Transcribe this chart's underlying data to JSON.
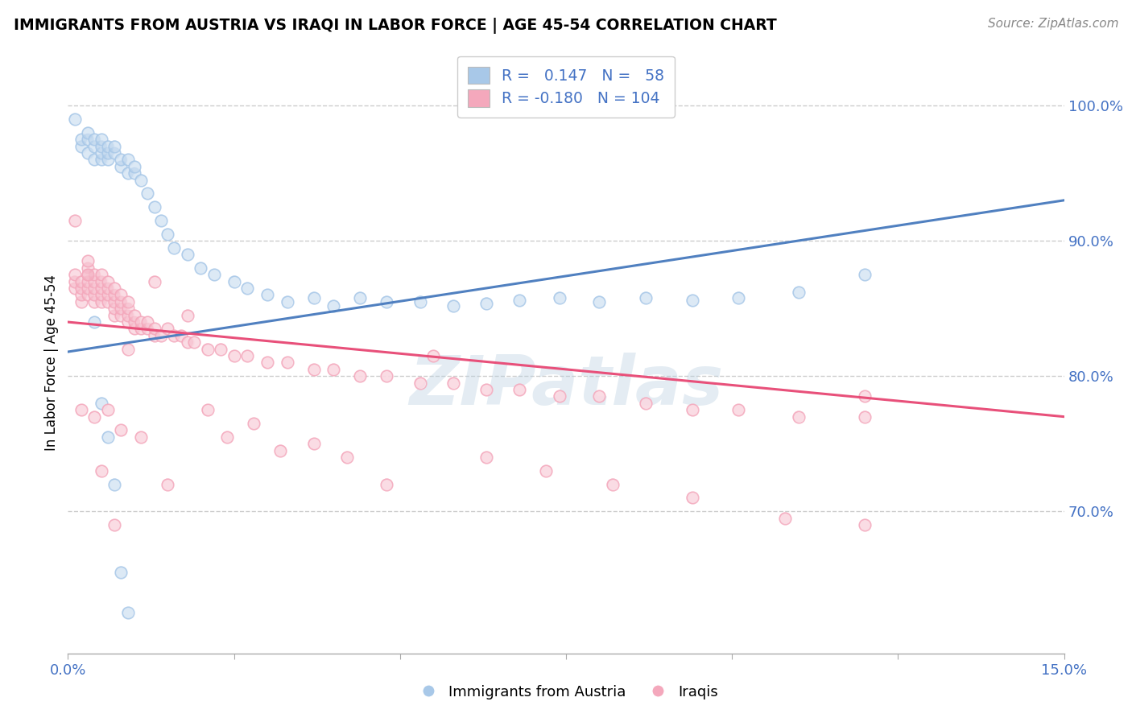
{
  "title": "IMMIGRANTS FROM AUSTRIA VS IRAQI IN LABOR FORCE | AGE 45-54 CORRELATION CHART",
  "source": "Source: ZipAtlas.com",
  "ylabel": "In Labor Force | Age 45-54",
  "ylabel_right_labels": [
    "100.0%",
    "90.0%",
    "80.0%",
    "70.0%"
  ],
  "ylabel_right_values": [
    1.0,
    0.9,
    0.8,
    0.7
  ],
  "xmin": 0.0,
  "xmax": 0.15,
  "ymin": 0.595,
  "ymax": 1.025,
  "r1": 0.147,
  "n1": 58,
  "r2": -0.18,
  "n2": 104,
  "color_austria": "#a8c8e8",
  "color_iraqi": "#f4a8bc",
  "color_line_austria": "#5080c0",
  "color_line_iraqi": "#e8507a",
  "austria_trend_x0": 0.0,
  "austria_trend_y0": 0.818,
  "austria_trend_x1": 0.15,
  "austria_trend_y1": 0.93,
  "iraqi_trend_x0": 0.0,
  "iraqi_trend_y0": 0.84,
  "iraqi_trend_x1": 0.15,
  "iraqi_trend_y1": 0.77,
  "austria_x": [
    0.001,
    0.002,
    0.002,
    0.003,
    0.003,
    0.003,
    0.004,
    0.004,
    0.004,
    0.005,
    0.005,
    0.005,
    0.005,
    0.006,
    0.006,
    0.006,
    0.007,
    0.007,
    0.008,
    0.008,
    0.009,
    0.009,
    0.01,
    0.01,
    0.011,
    0.012,
    0.013,
    0.014,
    0.015,
    0.016,
    0.018,
    0.02,
    0.022,
    0.025,
    0.027,
    0.03,
    0.033,
    0.037,
    0.04,
    0.044,
    0.048,
    0.053,
    0.058,
    0.063,
    0.068,
    0.074,
    0.08,
    0.087,
    0.094,
    0.101,
    0.11,
    0.12,
    0.004,
    0.005,
    0.006,
    0.007,
    0.008,
    0.009
  ],
  "austria_y": [
    0.99,
    0.97,
    0.975,
    0.965,
    0.975,
    0.98,
    0.96,
    0.97,
    0.975,
    0.96,
    0.965,
    0.97,
    0.975,
    0.96,
    0.965,
    0.97,
    0.965,
    0.97,
    0.955,
    0.96,
    0.95,
    0.96,
    0.95,
    0.955,
    0.945,
    0.935,
    0.925,
    0.915,
    0.905,
    0.895,
    0.89,
    0.88,
    0.875,
    0.87,
    0.865,
    0.86,
    0.855,
    0.858,
    0.852,
    0.858,
    0.855,
    0.855,
    0.852,
    0.854,
    0.856,
    0.858,
    0.855,
    0.858,
    0.856,
    0.858,
    0.862,
    0.875,
    0.84,
    0.78,
    0.755,
    0.72,
    0.655,
    0.625
  ],
  "iraqi_x": [
    0.001,
    0.001,
    0.001,
    0.002,
    0.002,
    0.002,
    0.002,
    0.003,
    0.003,
    0.003,
    0.003,
    0.003,
    0.003,
    0.004,
    0.004,
    0.004,
    0.004,
    0.004,
    0.005,
    0.005,
    0.005,
    0.005,
    0.005,
    0.006,
    0.006,
    0.006,
    0.006,
    0.007,
    0.007,
    0.007,
    0.007,
    0.007,
    0.008,
    0.008,
    0.008,
    0.008,
    0.009,
    0.009,
    0.009,
    0.009,
    0.01,
    0.01,
    0.01,
    0.011,
    0.011,
    0.012,
    0.012,
    0.013,
    0.013,
    0.014,
    0.015,
    0.016,
    0.017,
    0.018,
    0.019,
    0.021,
    0.023,
    0.025,
    0.027,
    0.03,
    0.033,
    0.037,
    0.04,
    0.044,
    0.048,
    0.053,
    0.058,
    0.063,
    0.068,
    0.074,
    0.08,
    0.087,
    0.094,
    0.101,
    0.11,
    0.12,
    0.001,
    0.002,
    0.003,
    0.004,
    0.005,
    0.006,
    0.007,
    0.008,
    0.009,
    0.011,
    0.013,
    0.015,
    0.018,
    0.021,
    0.024,
    0.028,
    0.032,
    0.037,
    0.042,
    0.048,
    0.055,
    0.063,
    0.072,
    0.082,
    0.094,
    0.108,
    0.12,
    0.12
  ],
  "iraqi_y": [
    0.865,
    0.87,
    0.875,
    0.855,
    0.86,
    0.865,
    0.87,
    0.86,
    0.865,
    0.87,
    0.875,
    0.88,
    0.885,
    0.855,
    0.86,
    0.865,
    0.87,
    0.875,
    0.855,
    0.86,
    0.865,
    0.87,
    0.875,
    0.855,
    0.86,
    0.865,
    0.87,
    0.845,
    0.85,
    0.855,
    0.86,
    0.865,
    0.845,
    0.85,
    0.855,
    0.86,
    0.84,
    0.845,
    0.85,
    0.855,
    0.835,
    0.84,
    0.845,
    0.835,
    0.84,
    0.835,
    0.84,
    0.83,
    0.835,
    0.83,
    0.835,
    0.83,
    0.83,
    0.825,
    0.825,
    0.82,
    0.82,
    0.815,
    0.815,
    0.81,
    0.81,
    0.805,
    0.805,
    0.8,
    0.8,
    0.795,
    0.795,
    0.79,
    0.79,
    0.785,
    0.785,
    0.78,
    0.775,
    0.775,
    0.77,
    0.77,
    0.915,
    0.775,
    0.875,
    0.77,
    0.73,
    0.775,
    0.69,
    0.76,
    0.82,
    0.755,
    0.87,
    0.72,
    0.845,
    0.775,
    0.755,
    0.765,
    0.745,
    0.75,
    0.74,
    0.72,
    0.815,
    0.74,
    0.73,
    0.72,
    0.71,
    0.695,
    0.69,
    0.785
  ]
}
